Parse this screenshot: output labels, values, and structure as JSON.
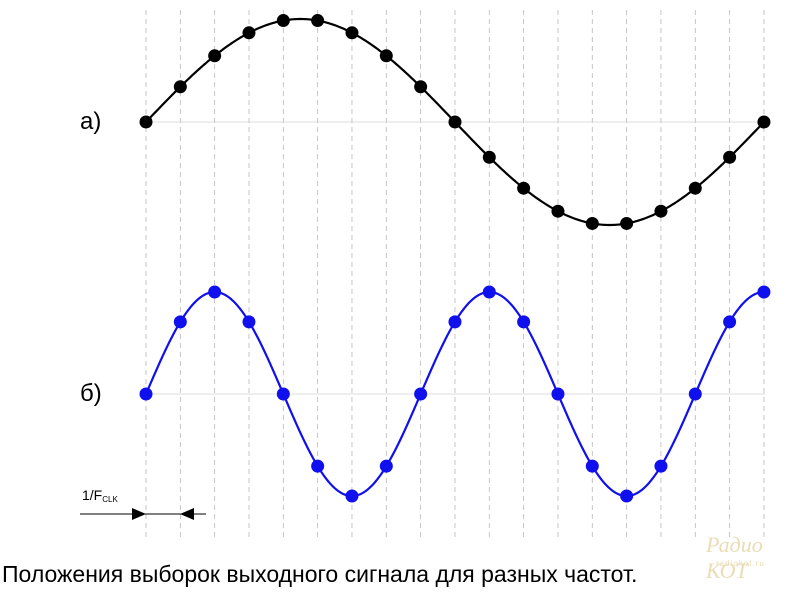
{
  "labels": {
    "a": "а)",
    "b": "б)",
    "clk_main": "1/F",
    "clk_sub": "CLK"
  },
  "caption": "Положения выборок выходного сигнала для разных частот.",
  "watermark": {
    "big": "Радио КОТ",
    "small": "radiokot.ru"
  },
  "colors": {
    "wave_a": "#000000",
    "wave_b": "#1010ee",
    "grid": "#b8b8b8"
  },
  "chart_data": [
    {
      "type": "line",
      "name_label": "а)",
      "samples_per_wave": 18,
      "cycles": 1,
      "num_samples": 19,
      "markers": true
    },
    {
      "type": "line",
      "name_label": "б)",
      "samples_per_wave": 8,
      "cycles": 2.25,
      "num_samples": 19,
      "markers": true
    }
  ]
}
